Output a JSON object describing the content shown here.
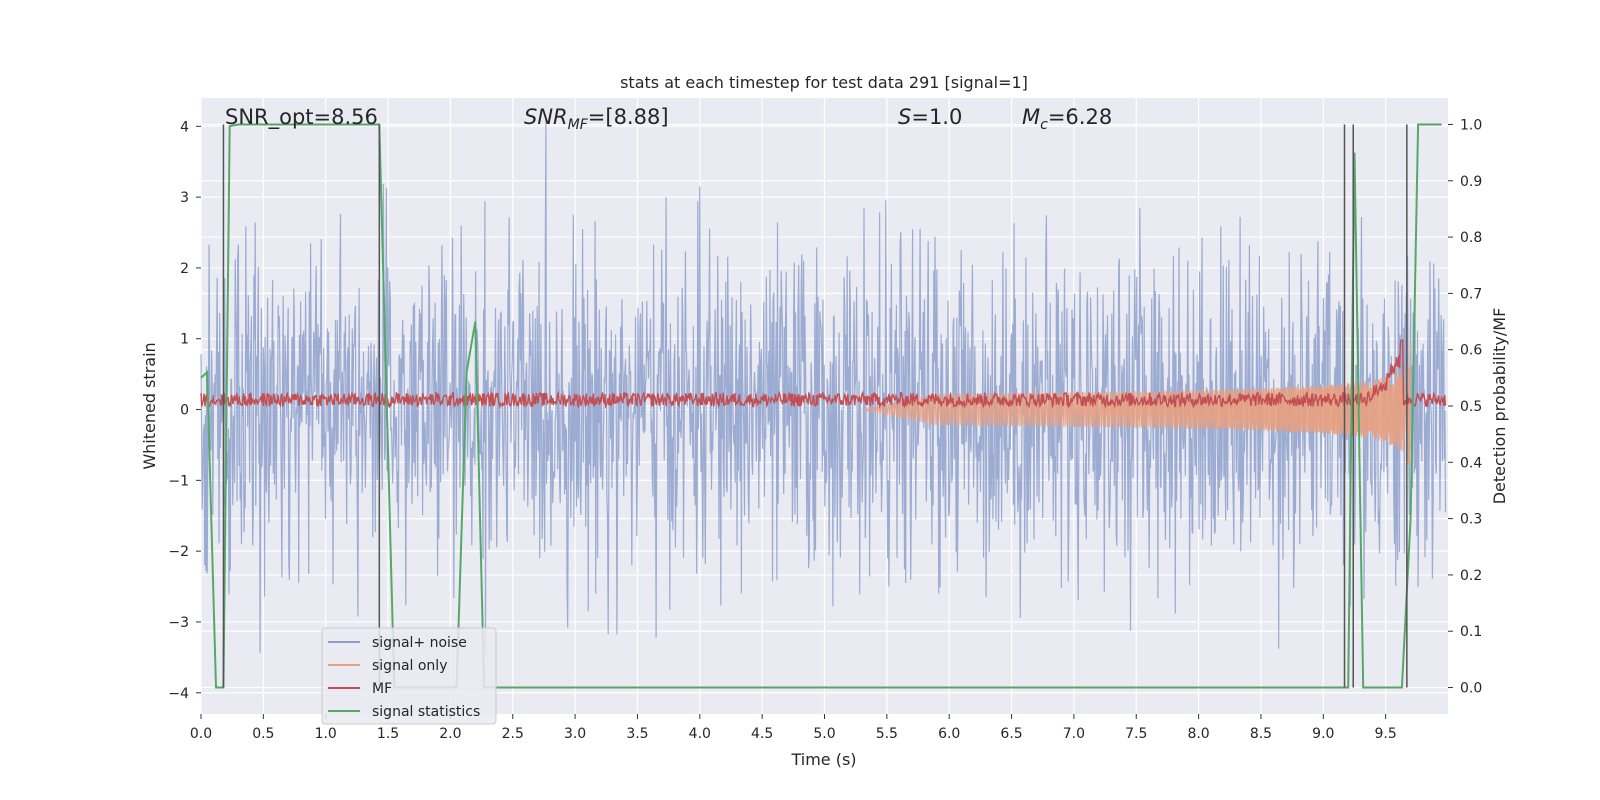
{
  "chart_data": {
    "type": "line",
    "title": "stats at each timestep for test data 291 [signal=1]",
    "xlabel": "Time (s)",
    "ylabel": "Whitened strain",
    "ylabel_right": "Detection probability/MF",
    "xlim": [
      0.0,
      10.0
    ],
    "ylim": [
      -4.3,
      4.4
    ],
    "ylim_right": [
      -0.047,
      1.047
    ],
    "x_ticks": [
      "0.0",
      "0.5",
      "1.0",
      "1.5",
      "2.0",
      "2.5",
      "3.0",
      "3.5",
      "4.0",
      "4.5",
      "5.0",
      "5.5",
      "6.0",
      "6.5",
      "7.0",
      "7.5",
      "8.0",
      "8.5",
      "9.0",
      "9.5"
    ],
    "x_tick_values": [
      0.0,
      0.5,
      1.0,
      1.5,
      2.0,
      2.5,
      3.0,
      3.5,
      4.0,
      4.5,
      5.0,
      5.5,
      6.0,
      6.5,
      7.0,
      7.5,
      8.0,
      8.5,
      9.0,
      9.5
    ],
    "y_ticks": [
      "−4",
      "−3",
      "−2",
      "−1",
      "0",
      "1",
      "2",
      "3",
      "4"
    ],
    "y_tick_values": [
      -4,
      -3,
      -2,
      -1,
      0,
      1,
      2,
      3,
      4
    ],
    "y_right_ticks": [
      "0.0",
      "0.1",
      "0.2",
      "0.3",
      "0.4",
      "0.5",
      "0.6",
      "0.7",
      "0.8",
      "0.9",
      "1.0"
    ],
    "y_right_tick_values": [
      0.0,
      0.1,
      0.2,
      0.3,
      0.4,
      0.5,
      0.6,
      0.7,
      0.8,
      0.9,
      1.0
    ],
    "grid": true,
    "annotations": {
      "snr_opt": "SNR_opt=8.56",
      "snr_mf_sym": "SNR",
      "snr_mf_sub": "MF",
      "snr_mf_val": "=[8.88]",
      "s_sym": "S",
      "s_val": "=1.0",
      "mc_sym": "M",
      "mc_sub": "c",
      "mc_val": "=6.28"
    },
    "legend": {
      "position": "lower left",
      "entries": [
        {
          "label": "signal+ noise",
          "color": "#8da0cb"
        },
        {
          "label": "signal only",
          "color": "#e8a080"
        },
        {
          "label": "MF",
          "color": "#c44e52"
        },
        {
          "label": "signal statistics",
          "color": "#55a868"
        }
      ]
    },
    "series": [
      {
        "name": "signal+ noise",
        "color": "#8da0cb",
        "axis": "left",
        "noise_sigma": 1.15,
        "samples": 2000
      },
      {
        "name": "signal only",
        "color": "#e8a080",
        "axis": "left",
        "chirp_start": 5.3,
        "chirp_end": 9.7,
        "amplitude_end": 1.0
      },
      {
        "name": "MF",
        "color": "#c44e52",
        "axis": "left",
        "baseline": 0.12,
        "spread": 0.1,
        "peak_x": 9.63,
        "peak_y": 0.98
      },
      {
        "name": "signal statistics",
        "color": "#55a868",
        "axis": "right",
        "x": [
          0.0,
          0.05,
          0.12,
          0.18,
          0.23,
          0.3,
          1.35,
          1.43,
          1.55,
          2.05,
          2.13,
          2.2,
          2.27,
          2.8,
          9.12,
          9.2,
          9.25,
          9.32,
          9.63,
          9.7,
          9.76,
          9.95
        ],
        "y": [
          0.55,
          0.56,
          0.0,
          0.0,
          0.997,
          1.0,
          1.0,
          1.0,
          0.0,
          0.0,
          0.56,
          0.65,
          0.0,
          0.0,
          0.0,
          0.0,
          0.95,
          0.0,
          0.0,
          0.3,
          1.0,
          1.0
        ]
      }
    ],
    "detection_lines_x": [
      0.18,
      1.43,
      9.17,
      9.24,
      9.67
    ]
  }
}
